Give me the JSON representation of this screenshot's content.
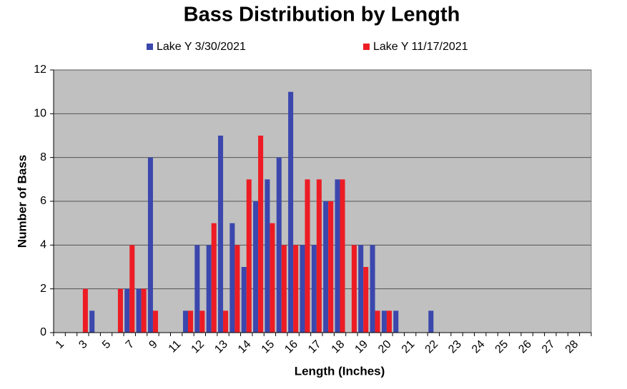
{
  "chart_data": {
    "type": "bar",
    "title": "Bass Distribution by Length",
    "x_label": "Length (Inches)",
    "y_label": "Number of Bass",
    "categories": [
      "1",
      null,
      "3",
      null,
      "5",
      null,
      "7",
      null,
      "9",
      null,
      "11",
      null,
      "12",
      null,
      "13",
      null,
      "14",
      null,
      "15",
      null,
      "16",
      null,
      "17",
      null,
      "18",
      null,
      "19",
      null,
      "20",
      null,
      "21",
      null,
      "22",
      null,
      "23",
      null,
      "24",
      null,
      "25",
      null,
      "26",
      null,
      "27",
      null,
      "28",
      null
    ],
    "series": [
      {
        "name": "Lake Y 3/30/2021",
        "color": "#3b47ad",
        "values": [
          0,
          0,
          0,
          1,
          0,
          0,
          2,
          2,
          8,
          0,
          0,
          1,
          4,
          4,
          9,
          5,
          3,
          6,
          7,
          8,
          11,
          4,
          4,
          6,
          7,
          0,
          4,
          4,
          1,
          1,
          0,
          0,
          1,
          0,
          0,
          0,
          0,
          0,
          0,
          0,
          0,
          0,
          0,
          0,
          0,
          0
        ]
      },
      {
        "name": "Lake Y 11/17/2021",
        "color": "#ed1c24",
        "values": [
          0,
          0,
          2,
          0,
          0,
          2,
          4,
          2,
          1,
          0,
          0,
          1,
          1,
          5,
          1,
          4,
          7,
          9,
          5,
          4,
          4,
          7,
          7,
          6,
          7,
          4,
          3,
          1,
          1,
          0,
          0,
          0,
          0,
          0,
          0,
          0,
          0,
          0,
          0,
          0,
          0,
          0,
          0,
          0,
          0,
          0
        ]
      }
    ],
    "ylim": [
      0,
      12
    ],
    "yticks": [
      0,
      2,
      4,
      6,
      8,
      10,
      12
    ],
    "grid": true,
    "legend": "top"
  }
}
